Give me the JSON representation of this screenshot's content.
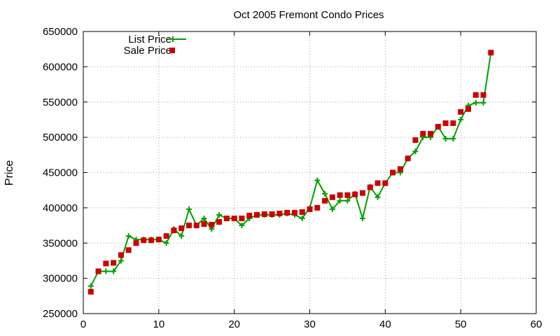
{
  "chart_data": {
    "type": "line",
    "title": "Oct 2005 Fremont Condo Prices",
    "xlabel": "",
    "ylabel": "Price",
    "xlim": [
      0,
      60
    ],
    "ylim": [
      250000,
      650000
    ],
    "xticks": [
      "0",
      "10",
      "20",
      "30",
      "40",
      "50",
      "60"
    ],
    "yticks": [
      "250000",
      "300000",
      "350000",
      "400000",
      "450000",
      "500000",
      "550000",
      "600000",
      "650000"
    ],
    "grid": true,
    "legend_position": "top-left",
    "colors": {
      "list": "#00a000",
      "sale": "#cc0000"
    },
    "series": [
      {
        "name": "List Price",
        "style": "line-with-plus-markers",
        "x": [
          1,
          2,
          3,
          4,
          5,
          6,
          7,
          8,
          9,
          10,
          11,
          12,
          13,
          14,
          15,
          16,
          17,
          18,
          19,
          20,
          21,
          22,
          23,
          24,
          25,
          26,
          27,
          28,
          29,
          30,
          31,
          32,
          33,
          34,
          35,
          36,
          37,
          38,
          39,
          40,
          41,
          42,
          43,
          44,
          45,
          46,
          47,
          48,
          49,
          50,
          51,
          52,
          53,
          54
        ],
        "values": [
          289000,
          310000,
          310000,
          310000,
          325000,
          360000,
          355000,
          355000,
          355000,
          355000,
          350000,
          370000,
          360000,
          398000,
          375000,
          385000,
          370000,
          390000,
          385000,
          385000,
          375000,
          385000,
          390000,
          390000,
          390000,
          390000,
          392000,
          390000,
          385000,
          400000,
          439000,
          420000,
          398000,
          410000,
          410000,
          420000,
          385000,
          430000,
          415000,
          435000,
          450000,
          450000,
          470000,
          480000,
          500000,
          500000,
          515000,
          498000,
          498000,
          525000,
          545000,
          549000,
          549000,
          620000
        ]
      },
      {
        "name": "Sale Price",
        "style": "square-markers",
        "x": [
          1,
          2,
          3,
          4,
          5,
          6,
          7,
          8,
          9,
          10,
          11,
          12,
          13,
          14,
          15,
          16,
          17,
          18,
          19,
          20,
          21,
          22,
          23,
          24,
          25,
          26,
          27,
          28,
          29,
          30,
          31,
          32,
          33,
          34,
          35,
          36,
          37,
          38,
          39,
          40,
          41,
          42,
          43,
          44,
          45,
          46,
          47,
          48,
          49,
          50,
          51,
          52,
          53,
          54
        ],
        "values": [
          281000,
          310000,
          321000,
          322000,
          333000,
          340000,
          350000,
          354000,
          354000,
          355000,
          360000,
          368000,
          371000,
          375000,
          375000,
          377000,
          376000,
          380000,
          385000,
          385000,
          385000,
          389000,
          390000,
          391000,
          391000,
          392000,
          393000,
          393000,
          394000,
          398000,
          400000,
          410000,
          415000,
          418000,
          418000,
          419000,
          421000,
          429000,
          435000,
          435000,
          450000,
          455000,
          470000,
          496000,
          505000,
          505000,
          515000,
          520000,
          520000,
          536000,
          540000,
          560000,
          560000,
          620000
        ]
      }
    ]
  }
}
